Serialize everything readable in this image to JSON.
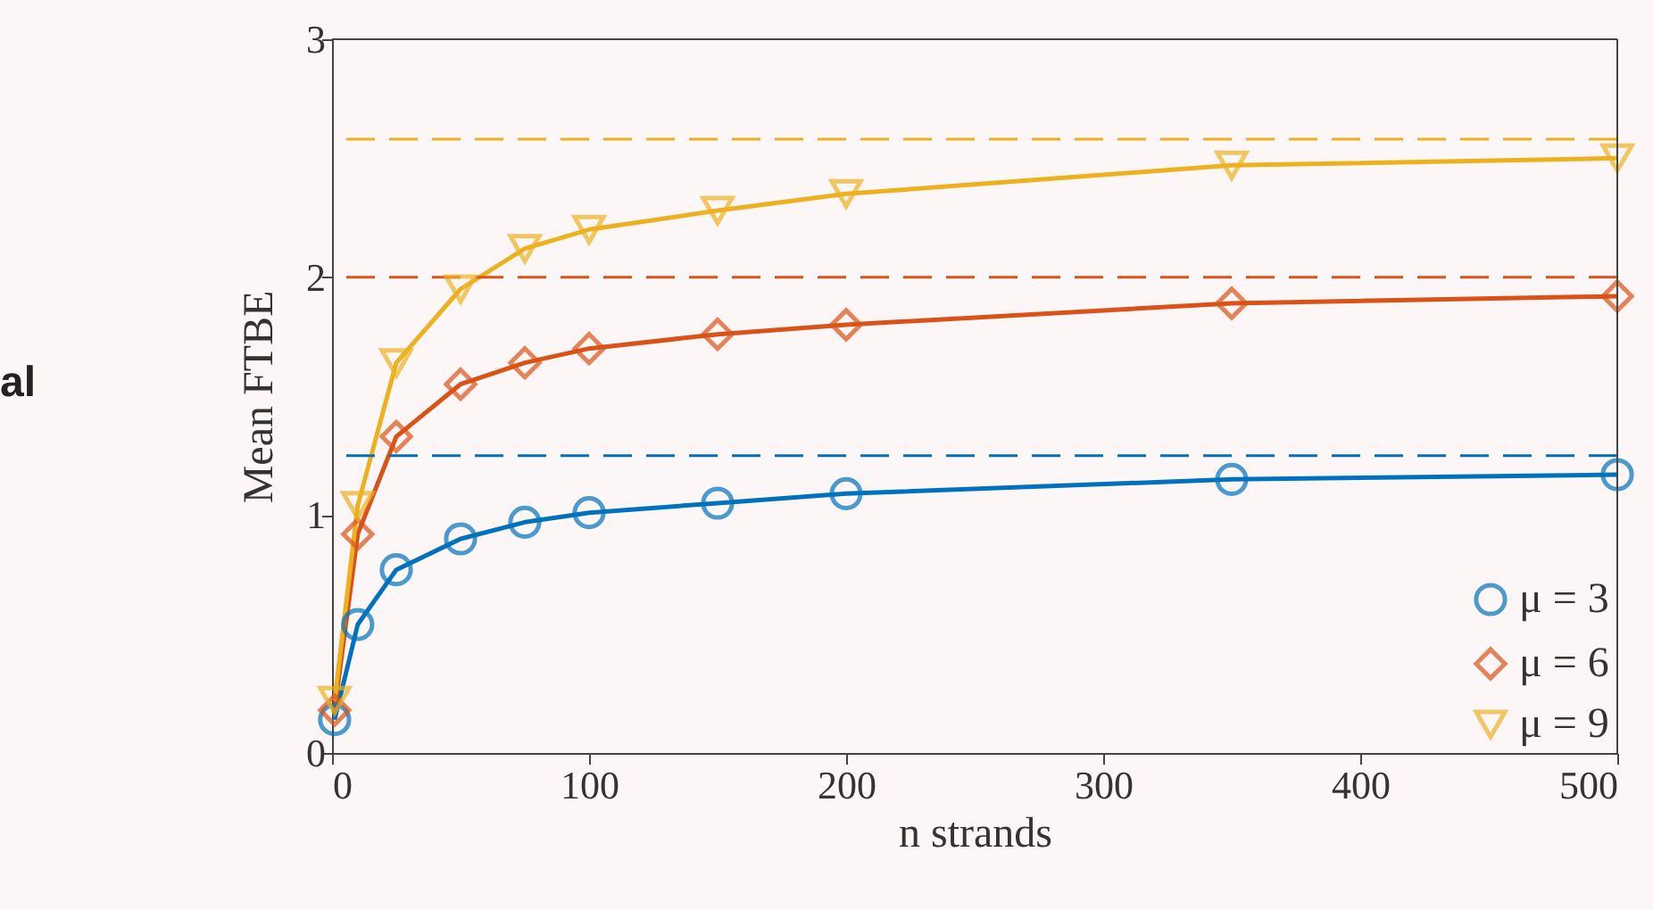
{
  "chart_data": {
    "type": "line",
    "xlabel": "n strands",
    "ylabel": "Mean FTBE",
    "x": [
      1,
      10,
      25,
      50,
      75,
      100,
      150,
      200,
      350,
      500
    ],
    "series": [
      {
        "name": "μ = 3",
        "color": "#0072bd",
        "marker": "circle",
        "values": [
          0.14,
          0.54,
          0.77,
          0.9,
          0.97,
          1.01,
          1.05,
          1.09,
          1.15,
          1.17
        ]
      },
      {
        "name": "μ = 6",
        "color": "#d95319",
        "marker": "diamond",
        "values": [
          0.18,
          0.92,
          1.33,
          1.55,
          1.64,
          1.7,
          1.76,
          1.8,
          1.89,
          1.92
        ]
      },
      {
        "name": "μ = 9",
        "color": "#edb120",
        "marker": "triangle",
        "values": [
          0.22,
          1.04,
          1.64,
          1.95,
          2.12,
          2.2,
          2.28,
          2.35,
          2.47,
          2.5
        ]
      }
    ],
    "ref_lines": [
      {
        "axis": "y",
        "value": 1.25,
        "color": "#0072bd",
        "line_style": "dashed"
      },
      {
        "axis": "y",
        "value": 2.0,
        "color": "#d95319",
        "line_style": "dashed"
      },
      {
        "axis": "y",
        "value": 2.58,
        "color": "#edb120",
        "line_style": "dashed"
      }
    ],
    "annotations": [
      "al"
    ],
    "xlim": [
      0,
      500
    ],
    "xticks": [
      0,
      100,
      200,
      300,
      400,
      500
    ],
    "ylim": [
      0,
      3
    ],
    "yticks": [
      0,
      1,
      2,
      3
    ],
    "legend": "bottom right",
    "grid": false
  }
}
